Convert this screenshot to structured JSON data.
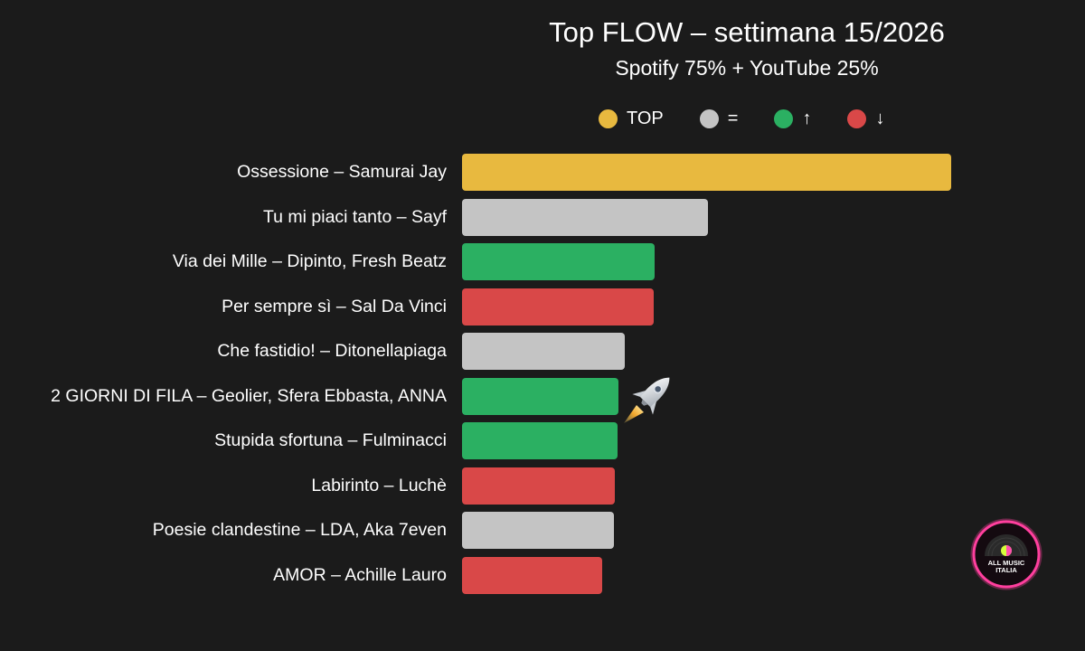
{
  "header": {
    "title": "Top FLOW – settimana 15/2026",
    "subtitle": "Spotify 75% + YouTube 25%"
  },
  "legend": [
    {
      "key": "top",
      "label": "TOP",
      "color": "#e8b93f"
    },
    {
      "key": "same",
      "label": "=",
      "color": "#c4c4c4"
    },
    {
      "key": "up",
      "label": "↑",
      "color": "#2bb062"
    },
    {
      "key": "down",
      "label": "↓",
      "color": "#d94848"
    }
  ],
  "colors": {
    "background": "#1b1b1b",
    "top": "#e8b93f",
    "same": "#c4c4c4",
    "up": "#2bb062",
    "down": "#d94848"
  },
  "rows": [
    {
      "label": "Ossessione – Samurai Jay",
      "status": "top",
      "value": 100
    },
    {
      "label": "Tu mi piaci tanto – Sayf",
      "status": "same",
      "value": 50.3
    },
    {
      "label": "Via dei Mille – Dipinto, Fresh Beatz",
      "status": "up",
      "value": 39.4
    },
    {
      "label": "Per sempre sì – Sal Da Vinci",
      "status": "down",
      "value": 39.2
    },
    {
      "label": "Che fastidio! – Ditonellapiaga",
      "status": "same",
      "value": 33.3
    },
    {
      "label": "2 GIORNI DI FILA – Geolier, Sfera Ebbasta, ANNA",
      "status": "up",
      "value": 31.9,
      "badge": "rocket"
    },
    {
      "label": "Stupida sfortuna – Fulminacci",
      "status": "up",
      "value": 31.8
    },
    {
      "label": "Labirinto – Luchè",
      "status": "down",
      "value": 31.2
    },
    {
      "label": "Poesie clandestine – LDA, Aka 7even",
      "status": "same",
      "value": 31.0
    },
    {
      "label": "AMOR – Achille Lauro",
      "status": "down",
      "value": 28.7
    }
  ],
  "logo": {
    "line1": "ALL MUSIC",
    "line2": "ITALIA"
  },
  "chart_data": {
    "type": "bar",
    "orientation": "horizontal",
    "title": "Top FLOW – settimana 15/2026",
    "subtitle": "Spotify 75% + YouTube 25%",
    "xlabel": "",
    "ylabel": "",
    "grid": false,
    "axis_ticks": false,
    "legend_position": "top",
    "legend": [
      "TOP",
      "=",
      "↑",
      "↓"
    ],
    "value_scale": "relative (top = 100), estimated from bar lengths; no axis shown",
    "categories": [
      "Ossessione – Samurai Jay",
      "Tu mi piaci tanto – Sayf",
      "Via dei Mille – Dipinto, Fresh Beatz",
      "Per sempre sì – Sal Da Vinci",
      "Che fastidio! – Ditonellapiaga",
      "2 GIORNI DI FILA – Geolier, Sfera Ebbasta, ANNA",
      "Stupida sfortuna – Fulminacci",
      "Labirinto – Luchè",
      "Poesie clandestine – LDA, Aka 7even",
      "AMOR – Achille Lauro"
    ],
    "values": [
      100,
      50.3,
      39.4,
      39.2,
      33.3,
      31.9,
      31.8,
      31.2,
      31.0,
      28.7
    ],
    "status": [
      "TOP",
      "=",
      "↑",
      "↓",
      "=",
      "↑",
      "↑",
      "↓",
      "=",
      "↓"
    ],
    "annotations": [
      {
        "category": "2 GIORNI DI FILA – Geolier, Sfera Ebbasta, ANNA",
        "icon": "rocket"
      }
    ]
  }
}
